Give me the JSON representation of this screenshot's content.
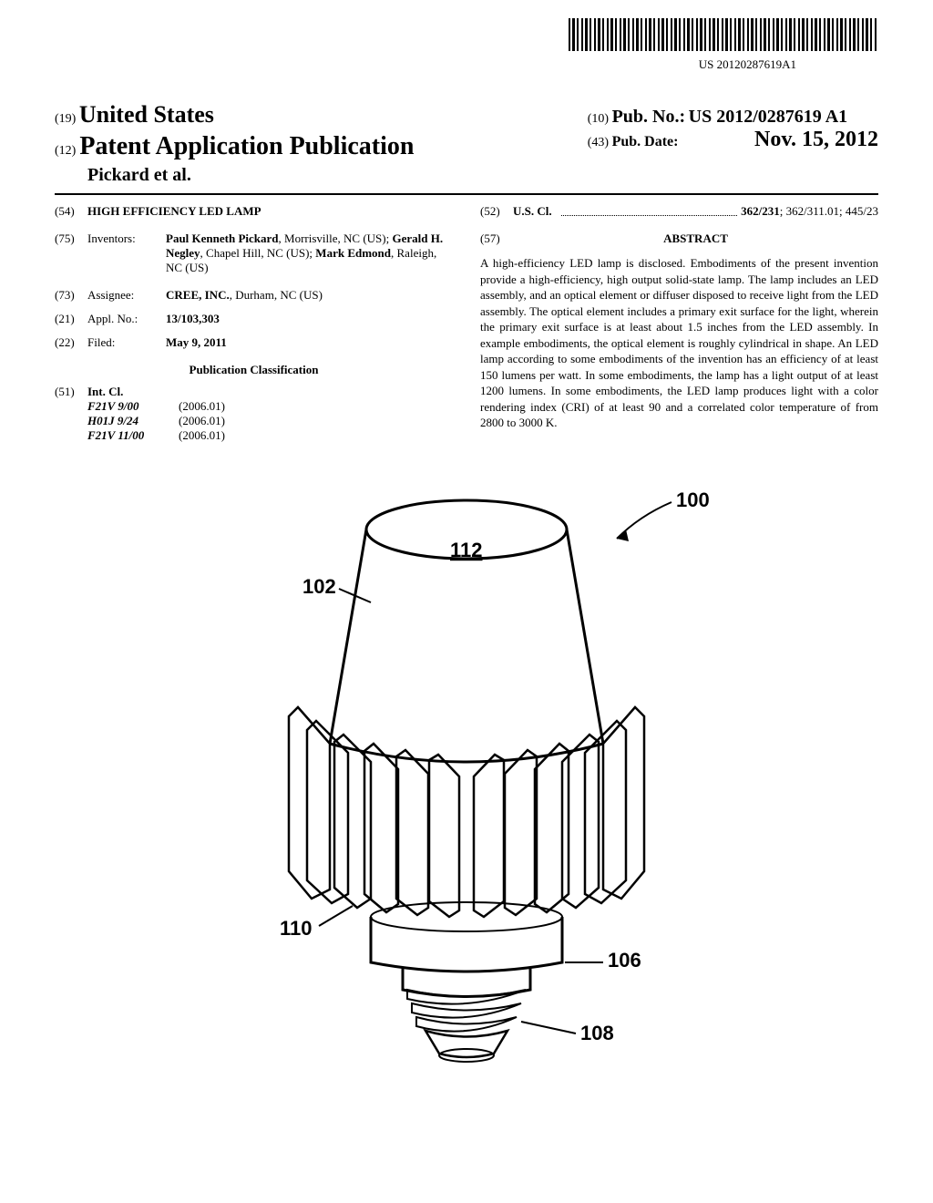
{
  "barcode_text": "US 20120287619A1",
  "header": {
    "country_code": "(19)",
    "country_name": "United States",
    "pub_type_code": "(12)",
    "pub_type": "Patent Application Publication",
    "authors": "Pickard et al.",
    "pub_num_code": "(10)",
    "pub_num_label": "Pub. No.:",
    "pub_num_value": "US 2012/0287619 A1",
    "pub_date_code": "(43)",
    "pub_date_label": "Pub. Date:",
    "pub_date_value": "Nov. 15, 2012"
  },
  "title": {
    "code": "(54)",
    "value": "HIGH EFFICIENCY LED LAMP"
  },
  "inventors": {
    "code": "(75)",
    "label": "Inventors:",
    "names": [
      {
        "name": "Paul Kenneth Pickard",
        "loc": ", Morrisville, NC (US); "
      },
      {
        "name": "Gerald H. Negley",
        "loc": ", Chapel Hill, NC (US); "
      },
      {
        "name": "Mark Edmond",
        "loc": ", Raleigh, NC (US)"
      }
    ]
  },
  "assignee": {
    "code": "(73)",
    "label": "Assignee:",
    "value": "CREE, INC.",
    "loc": ", Durham, NC (US)"
  },
  "appl_no": {
    "code": "(21)",
    "label": "Appl. No.:",
    "value": "13/103,303"
  },
  "filed": {
    "code": "(22)",
    "label": "Filed:",
    "value": "May 9, 2011"
  },
  "classification_header": "Publication Classification",
  "int_cl": {
    "code": "(51)",
    "label": "Int. Cl.",
    "items": [
      {
        "code": "F21V 9/00",
        "year": "(2006.01)"
      },
      {
        "code": "H01J 9/24",
        "year": "(2006.01)"
      },
      {
        "code": "F21V 11/00",
        "year": "(2006.01)"
      }
    ]
  },
  "us_cl": {
    "code": "(52)",
    "label": "U.S. Cl.",
    "primary": "362/231",
    "rest": "; 362/311.01; 445/23"
  },
  "abstract": {
    "code": "(57)",
    "header": "ABSTRACT",
    "text": "A high-efficiency LED lamp is disclosed. Embodiments of the present invention provide a high-efficiency, high output solid-state lamp. The lamp includes an LED assembly, and an optical element or diffuser disposed to receive light from the LED assembly. The optical element includes a primary exit surface for the light, wherein the primary exit surface is at least about 1.5 inches from the LED assembly. In example embodiments, the optical element is roughly cylindrical in shape. An LED lamp according to some embodiments of the invention has an efficiency of at least 150 lumens per watt. In some embodiments, the lamp has a light output of at least 1200 lumens. In some embodiments, the LED lamp produces light with a color rendering index (CRI) of at least 90 and a correlated color temperature of from 2800 to 3000 K."
  },
  "figure": {
    "labels": {
      "ref_100": "100",
      "ref_102": "102",
      "ref_106": "106",
      "ref_108": "108",
      "ref_110": "110",
      "ref_112": "112"
    }
  }
}
